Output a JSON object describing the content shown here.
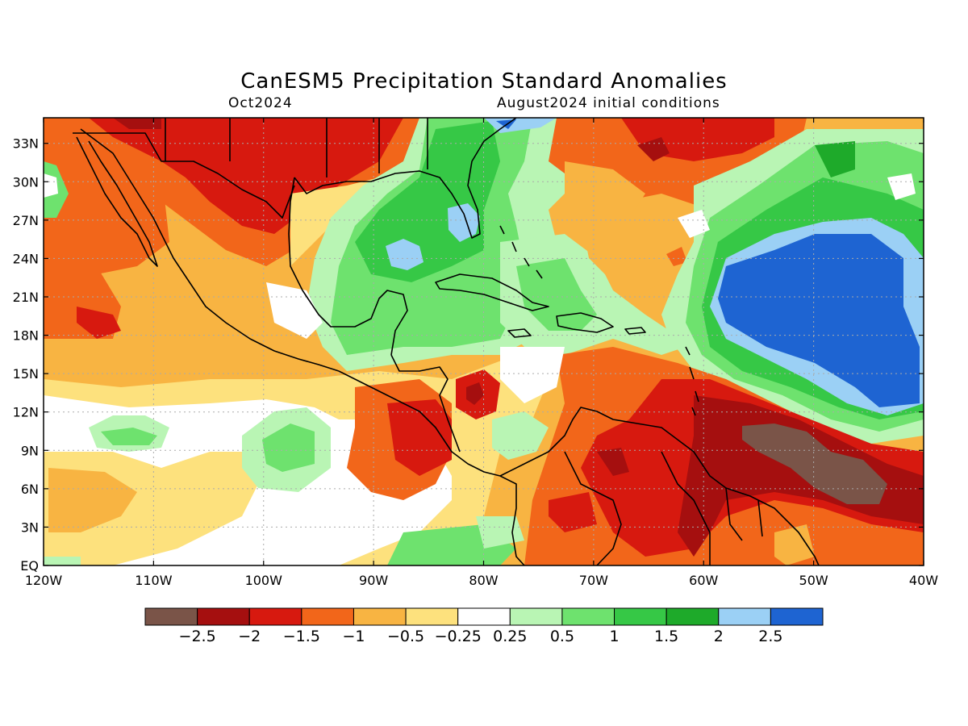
{
  "map": {
    "title": "CanESM5 Precipitation Standard Anomalies",
    "valid_month": "Oct2024",
    "init_conditions": "August2024 initial conditions",
    "lat_labels": [
      "33N",
      "30N",
      "27N",
      "24N",
      "21N",
      "18N",
      "15N",
      "12N",
      "9N",
      "6N",
      "3N",
      "EQ"
    ],
    "lon_labels": [
      "120W",
      "110W",
      "100W",
      "90W",
      "80W",
      "70W",
      "60W",
      "50W",
      "40W"
    ]
  },
  "legend": {
    "labels": [
      "−2.5",
      "−2",
      "−1.5",
      "−1",
      "−0.5",
      "−0.25",
      "0.25",
      "0.5",
      "1",
      "1.5",
      "2",
      "2.5"
    ],
    "colors": [
      "#7a5448",
      "#a50f0f",
      "#d7190f",
      "#f2661a",
      "#f8b442",
      "#fde17d",
      "#ffffff",
      "#b9f5b4",
      "#6ee26e",
      "#36c846",
      "#1eaa2a",
      "#9bd0f5",
      "#1e64d2"
    ]
  },
  "colors": {
    "coast": "#000000",
    "grid": "#aaaaaa"
  }
}
